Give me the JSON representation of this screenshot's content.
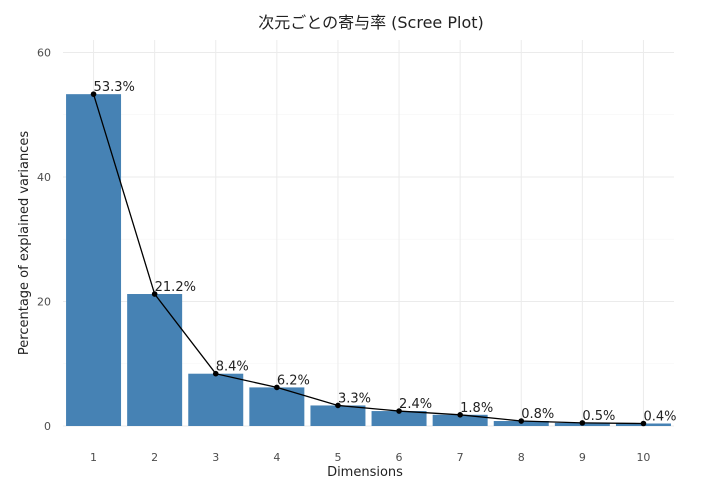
{
  "chart_data": {
    "type": "bar",
    "title": "次元ごとの寄与率 (Scree Plot)",
    "xlabel": "Dimensions",
    "ylabel": "Percentage of explained variances",
    "categories": [
      "1",
      "2",
      "3",
      "4",
      "5",
      "6",
      "7",
      "8",
      "9",
      "10"
    ],
    "values": [
      53.3,
      21.2,
      8.4,
      6.2,
      3.3,
      2.4,
      1.8,
      0.8,
      0.5,
      0.4
    ],
    "data_labels": [
      "53.3%",
      "21.2%",
      "8.4%",
      "6.2%",
      "3.3%",
      "2.4%",
      "1.8%",
      "0.8%",
      "0.5%",
      "0.4%"
    ],
    "ylim": [
      0,
      62
    ],
    "yticks": [
      0,
      20,
      40,
      60
    ],
    "y_tick_labels": [
      "0",
      "20",
      "40",
      "60"
    ],
    "grid": true,
    "line_overlay": true,
    "colors": {
      "bar": "#4682B4",
      "line": "#000000",
      "point": "#000000",
      "grid_major": "#EBEBEB",
      "grid_minor": "#F5F5F5"
    }
  }
}
